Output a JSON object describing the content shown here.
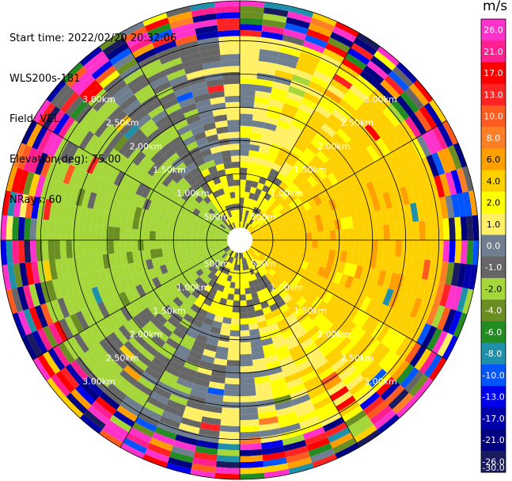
{
  "header": {
    "start_time": "Start time: 2022/02/20 20:32:06",
    "instrument": "WLS200s-181",
    "field": "Field: VEL",
    "elevation": "Elevation(deg): 75.00",
    "nrays": "NRays: 60"
  },
  "colorbar": {
    "unit": "m/s",
    "tick_labels": [
      "26.0",
      "21.0",
      "17.0",
      "13.0",
      "10.0",
      "8.0",
      "6.0",
      "4.0",
      "2.0",
      "1.0",
      "0.0",
      "-1.0",
      "-2.0",
      "-4.0",
      "-6.0",
      "-8.0",
      "-10.0",
      "-13.0",
      "-17.0",
      "-21.0",
      "-26.0",
      "-30.0"
    ],
    "colors": [
      "#ff33cc",
      "#ff1f8f",
      "#ff0000",
      "#ff2222",
      "#ff5a1f",
      "#ff7f27",
      "#ff9f00",
      "#ffd000",
      "#ffff00",
      "#fff066",
      "#6f7f8f",
      "#666666",
      "#a5d63a",
      "#6b8e23",
      "#228b22",
      "#1e90aa",
      "#0055ff",
      "#0000ee",
      "#0000aa",
      "#000080",
      "#1a1a5e"
    ]
  },
  "chart_data": {
    "type": "heatmap",
    "projection": "polar (PPI)",
    "field": "VEL",
    "units": "m/s",
    "rays": 60,
    "range_rings_km": [
      0.5,
      1.0,
      1.5,
      2.0,
      2.5,
      3.0
    ],
    "ring_labels": [
      "500m",
      "1.00km",
      "1.50km",
      "2.00km",
      "2.50km",
      "3.00km"
    ],
    "color_scale_range": [
      -30,
      30
    ],
    "description_values": {
      "west_sector_dominant_ms": -3,
      "east_sector_dominant_ms": 1.5,
      "north_south_near_ms": 0
    }
  }
}
